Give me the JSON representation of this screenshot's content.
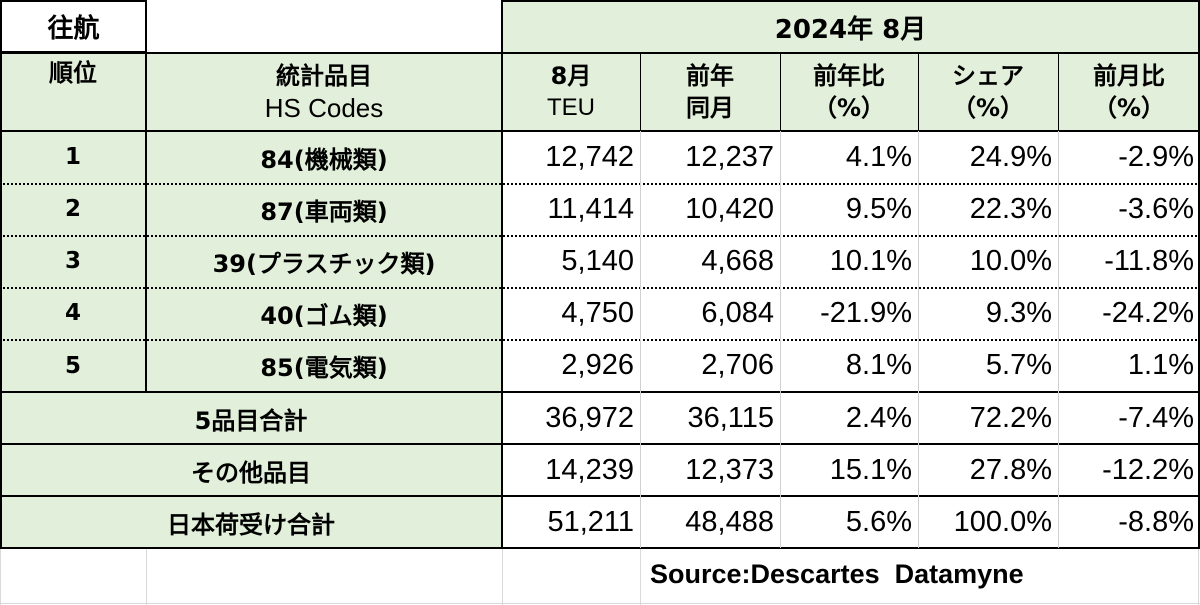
{
  "direction_label": "往航",
  "period_label": "2024年 8月",
  "headers": {
    "rank": "順位",
    "item_line1": "統計品目",
    "item_line2": "HS Codes",
    "teu_line1": "8月",
    "teu_line2": "TEU",
    "prev_line1": "前年",
    "prev_line2": "同月",
    "yoy_line1": "前年比",
    "yoy_line2": "（%）",
    "share_line1": "シェア",
    "share_line2": "（%）",
    "mom_line1": "前月比",
    "mom_line2": "（%）"
  },
  "rows": [
    {
      "rank": "1",
      "item": "84(機械類)",
      "teu": "12,742",
      "prev": "12,237",
      "yoy": "4.1%",
      "share": "24.9%",
      "mom": "-2.9%"
    },
    {
      "rank": "2",
      "item": "87(車両類)",
      "teu": "11,414",
      "prev": "10,420",
      "yoy": "9.5%",
      "share": "22.3%",
      "mom": "-3.6%"
    },
    {
      "rank": "3",
      "item": "39(プラスチック類)",
      "teu": "5,140",
      "prev": "4,668",
      "yoy": "10.1%",
      "share": "10.0%",
      "mom": "-11.8%"
    },
    {
      "rank": "4",
      "item": "40(ゴム類)",
      "teu": "4,750",
      "prev": "6,084",
      "yoy": "-21.9%",
      "share": "9.3%",
      "mom": "-24.2%"
    },
    {
      "rank": "5",
      "item": "85(電気類)",
      "teu": "2,926",
      "prev": "2,706",
      "yoy": "8.1%",
      "share": "5.7%",
      "mom": "1.1%"
    }
  ],
  "totals": [
    {
      "label": "5品目合計",
      "teu": "36,972",
      "prev": "36,115",
      "yoy": "2.4%",
      "share": "72.2%",
      "mom": "-7.4%"
    },
    {
      "label": "その他品目",
      "teu": "14,239",
      "prev": "12,373",
      "yoy": "15.1%",
      "share": "27.8%",
      "mom": "-12.2%"
    },
    {
      "label": "日本荷受け合計",
      "teu": "51,211",
      "prev": "48,488",
      "yoy": "5.6%",
      "share": "100.0%",
      "mom": "-8.8%"
    }
  ],
  "source": "Source:Descartes  Datamyne",
  "colors": {
    "header_fill": "#e2efda",
    "border": "#000000",
    "gridline": "#d9d9d9"
  }
}
